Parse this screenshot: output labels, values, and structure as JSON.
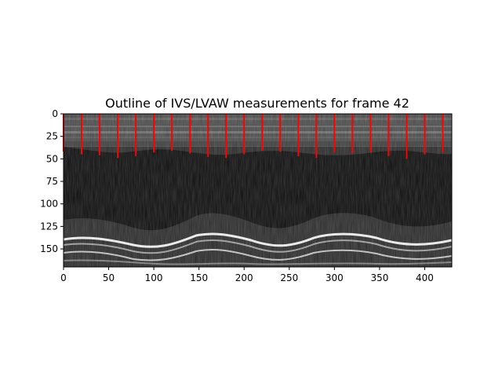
{
  "chart_data": {
    "type": "heatmap",
    "title": "Outline of IVS/LVAW measurements for frame 42",
    "xlabel": "",
    "ylabel": "",
    "xlim": [
      0,
      430
    ],
    "ylim": [
      170,
      0
    ],
    "y_axis_inverted": true,
    "x_ticks": [
      0,
      50,
      100,
      150,
      200,
      250,
      300,
      350,
      400
    ],
    "y_ticks": [
      0,
      25,
      50,
      75,
      100,
      125,
      150
    ],
    "grid": false,
    "colormap": "gray",
    "measurement_color": "#ff0000",
    "measurements": [
      {
        "x": 0,
        "y_start": 0,
        "y_end": 42
      },
      {
        "x": 20,
        "y_start": 0,
        "y_end": 45
      },
      {
        "x": 40,
        "y_start": 0,
        "y_end": 46
      },
      {
        "x": 60,
        "y_start": 0,
        "y_end": 49
      },
      {
        "x": 80,
        "y_start": 0,
        "y_end": 47
      },
      {
        "x": 100,
        "y_start": 0,
        "y_end": 43
      },
      {
        "x": 120,
        "y_start": 0,
        "y_end": 41
      },
      {
        "x": 140,
        "y_start": 0,
        "y_end": 44
      },
      {
        "x": 160,
        "y_start": 0,
        "y_end": 48
      },
      {
        "x": 180,
        "y_start": 0,
        "y_end": 49
      },
      {
        "x": 200,
        "y_start": 0,
        "y_end": 45
      },
      {
        "x": 220,
        "y_start": 0,
        "y_end": 41
      },
      {
        "x": 240,
        "y_start": 0,
        "y_end": 42
      },
      {
        "x": 260,
        "y_start": 0,
        "y_end": 47
      },
      {
        "x": 280,
        "y_start": 0,
        "y_end": 49
      },
      {
        "x": 300,
        "y_start": 0,
        "y_end": 43
      },
      {
        "x": 320,
        "y_start": 0,
        "y_end": 44
      },
      {
        "x": 340,
        "y_start": 0,
        "y_end": 43
      },
      {
        "x": 360,
        "y_start": 0,
        "y_end": 47
      },
      {
        "x": 380,
        "y_start": 0,
        "y_end": 50
      },
      {
        "x": 400,
        "y_start": 0,
        "y_end": 45
      },
      {
        "x": 420,
        "y_start": 0,
        "y_end": 43
      }
    ]
  }
}
